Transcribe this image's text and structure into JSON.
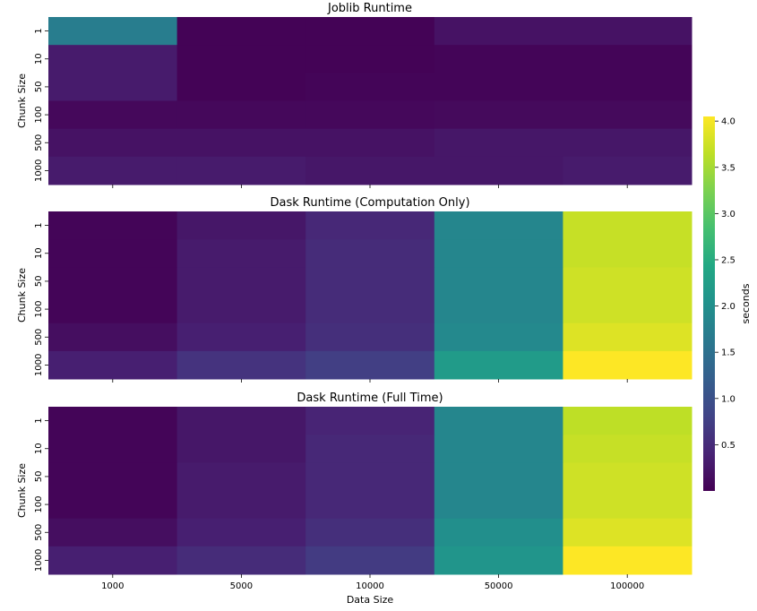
{
  "chart_data": [
    {
      "type": "heatmap",
      "title": "Joblib Runtime",
      "xlabel": "",
      "ylabel": "Chunk Size",
      "x_categories": [
        "1000",
        "5000",
        "10000",
        "50000",
        "100000"
      ],
      "y_categories": [
        "1",
        "10",
        "50",
        "100",
        "500",
        "1000"
      ],
      "values": [
        [
          1.7,
          0.02,
          0.02,
          0.2,
          0.2
        ],
        [
          0.3,
          0.02,
          0.02,
          0.05,
          0.05
        ],
        [
          0.3,
          0.02,
          0.05,
          0.05,
          0.05
        ],
        [
          0.08,
          0.08,
          0.08,
          0.1,
          0.1
        ],
        [
          0.2,
          0.2,
          0.2,
          0.25,
          0.25
        ],
        [
          0.3,
          0.3,
          0.25,
          0.25,
          0.3
        ]
      ],
      "colormap": "viridis",
      "vmin": 0.0,
      "vmax": 4.05
    },
    {
      "type": "heatmap",
      "title": "Dask Runtime (Computation Only)",
      "xlabel": "",
      "ylabel": "Chunk Size",
      "x_categories": [
        "1000",
        "5000",
        "10000",
        "50000",
        "100000"
      ],
      "y_categories": [
        "1",
        "10",
        "50",
        "100",
        "500",
        "1000"
      ],
      "values": [
        [
          0.05,
          0.25,
          0.45,
          1.85,
          3.7
        ],
        [
          0.05,
          0.3,
          0.5,
          1.85,
          3.7
        ],
        [
          0.05,
          0.3,
          0.5,
          1.85,
          3.75
        ],
        [
          0.05,
          0.3,
          0.5,
          1.85,
          3.75
        ],
        [
          0.15,
          0.35,
          0.55,
          1.9,
          3.85
        ],
        [
          0.35,
          0.6,
          0.75,
          2.2,
          4.05
        ]
      ],
      "colormap": "viridis",
      "vmin": 0.0,
      "vmax": 4.05
    },
    {
      "type": "heatmap",
      "title": "Dask Runtime (Full Time)",
      "xlabel": "Data Size",
      "ylabel": "Chunk Size",
      "x_categories": [
        "1000",
        "5000",
        "10000",
        "50000",
        "100000"
      ],
      "y_categories": [
        "1",
        "10",
        "50",
        "100",
        "500",
        "1000"
      ],
      "values": [
        [
          0.05,
          0.25,
          0.4,
          1.85,
          3.65
        ],
        [
          0.05,
          0.25,
          0.45,
          1.85,
          3.7
        ],
        [
          0.05,
          0.3,
          0.45,
          1.85,
          3.75
        ],
        [
          0.05,
          0.3,
          0.45,
          1.85,
          3.75
        ],
        [
          0.15,
          0.35,
          0.55,
          2.0,
          3.85
        ],
        [
          0.35,
          0.5,
          0.7,
          2.1,
          4.05
        ]
      ],
      "colormap": "viridis",
      "vmin": 0.0,
      "vmax": 4.05
    }
  ],
  "colorbar": {
    "label": "seconds",
    "ticks": [
      0.5,
      1.0,
      1.5,
      2.0,
      2.5,
      3.0,
      3.5,
      4.0
    ],
    "tick_labels": [
      "0.5",
      "1.0",
      "1.5",
      "2.0",
      "2.5",
      "3.0",
      "3.5",
      "4.0"
    ]
  }
}
